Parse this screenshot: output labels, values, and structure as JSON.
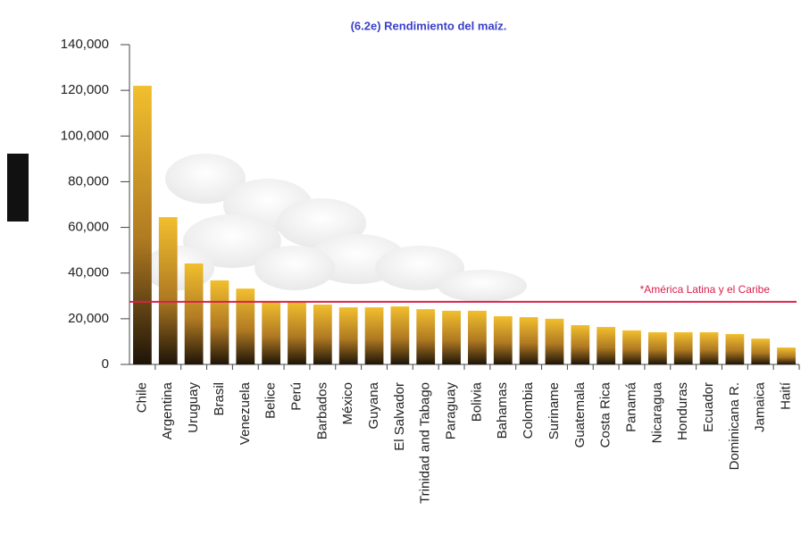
{
  "chart_data": {
    "type": "bar",
    "title": "(6.2e) Rendimiento del maíz.",
    "categories": [
      "Chile",
      "Argentina",
      "Uruguay",
      "Brasil",
      "Venezuela",
      "Belice",
      "Perú",
      "Barbados",
      "México",
      "Guyana",
      "El Salvador",
      "Trinidad and Tabago",
      "Paraguay",
      "Bolivia",
      "Bahamas",
      "Colombia",
      "Suriname",
      "Guatemala",
      "Costa Rica",
      "Panamá",
      "Nicaragua",
      "Honduras",
      "Ecuador",
      "Dominicana R.",
      "Jamaica",
      "Haití"
    ],
    "values": [
      122000,
      64500,
      44200,
      36800,
      33200,
      27800,
      27400,
      26200,
      25000,
      25000,
      25400,
      24200,
      23500,
      23500,
      21100,
      20700,
      20000,
      17200,
      16400,
      14900,
      14100,
      14100,
      14100,
      13300,
      11300,
      7400
    ],
    "color": "#f2bf2e",
    "ylim": [
      0,
      140000
    ],
    "yticks": [
      0,
      {
        "value": 20000,
        "label": "20,000"
      },
      {
        "value": 40000,
        "label": "40,000"
      },
      {
        "value": 60000,
        "label": "60,000"
      },
      {
        "value": 80000,
        "label": "80,000"
      },
      {
        "value": 100000,
        "label": "100,000"
      },
      {
        "value": 120000,
        "label": "120,000"
      },
      {
        "value": 140000,
        "label": "140,000"
      }
    ],
    "reference_line": {
      "value": 27400,
      "label": "*América Latina y el Caribe",
      "color": "#d8204a"
    }
  }
}
